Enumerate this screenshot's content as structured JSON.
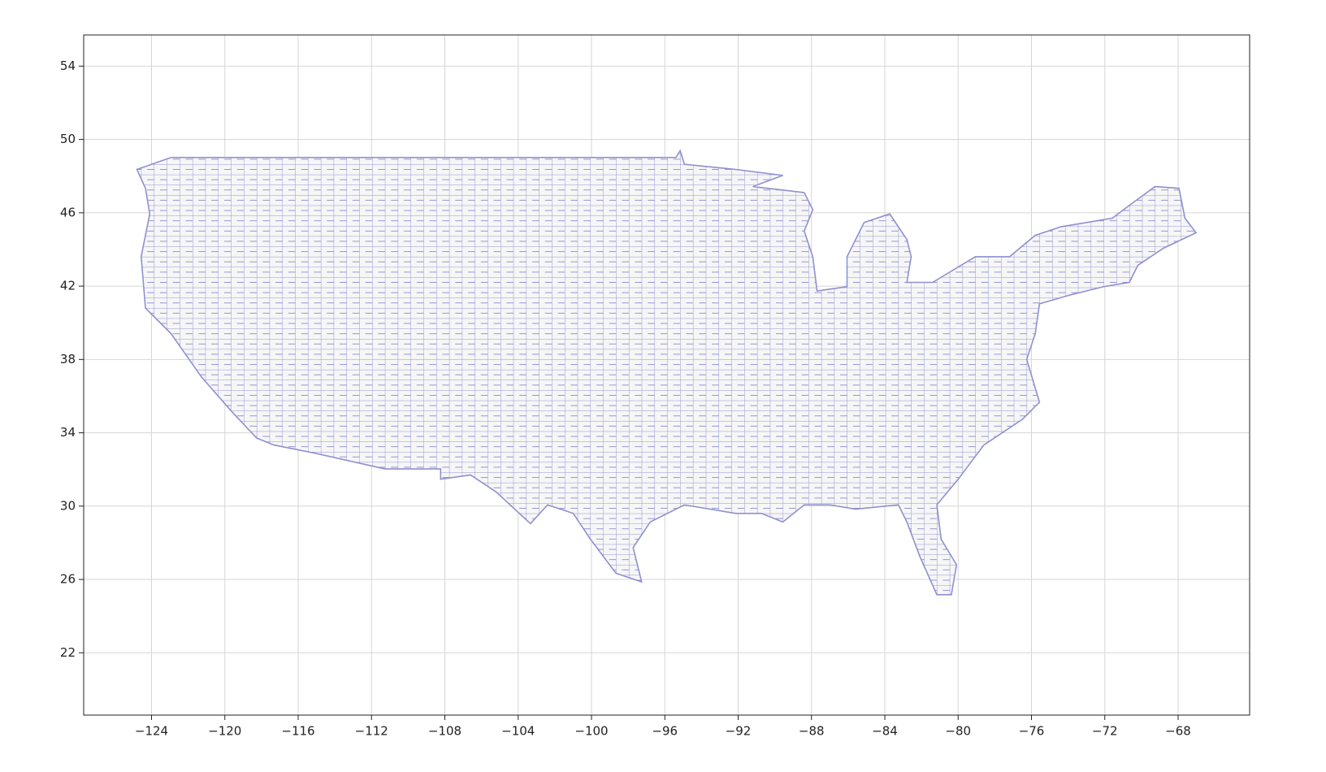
{
  "chart_data": {
    "type": "map",
    "xlim": [
      -127.7,
      -64.1
    ],
    "ylim": [
      18.6,
      55.7
    ],
    "xticks": [
      {
        "value": -124,
        "label": "−124"
      },
      {
        "value": -120,
        "label": "−120"
      },
      {
        "value": -116,
        "label": "−116"
      },
      {
        "value": -112,
        "label": "−112"
      },
      {
        "value": -108,
        "label": "−108"
      },
      {
        "value": -104,
        "label": "−104"
      },
      {
        "value": -100,
        "label": "−100"
      },
      {
        "value": -96,
        "label": "−96"
      },
      {
        "value": -92,
        "label": "−92"
      },
      {
        "value": -88,
        "label": "−88"
      },
      {
        "value": -84,
        "label": "−84"
      },
      {
        "value": -80,
        "label": "−80"
      },
      {
        "value": -76,
        "label": "−76"
      },
      {
        "value": -72,
        "label": "−72"
      },
      {
        "value": -68,
        "label": "−68"
      }
    ],
    "yticks": [
      22,
      26,
      30,
      34,
      38,
      42,
      46,
      50,
      54
    ],
    "grid": true
  }
}
